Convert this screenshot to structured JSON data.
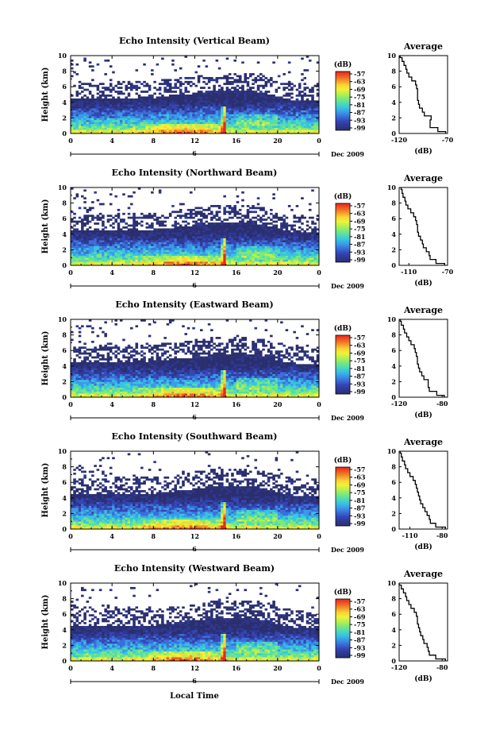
{
  "figure": {
    "xlabel": "Local Time",
    "ylabel": "Height (km)",
    "date_label": "Dec 2009",
    "day_label": "6",
    "colorbar_unit": "(dB)",
    "profile_title": "Average",
    "profile_xlabel": "(dB)"
  },
  "colorbar": {
    "ticks": [
      "-57",
      "-63",
      "-69",
      "-75",
      "-81",
      "-87",
      "-93",
      "-99"
    ],
    "colors": [
      "#e8241c",
      "#ee5a22",
      "#f4952a",
      "#fad432",
      "#eef23a",
      "#b8f04e",
      "#7ee87a",
      "#52dcb0",
      "#38c4e0",
      "#3a9ae8",
      "#3a6ed8",
      "#3446b4",
      "#2e3892",
      "#2b2f6e"
    ]
  },
  "chart_data": [
    {
      "type": "heatmap",
      "title": "Echo Intensity (Vertical Beam)",
      "xlabel": "Local Time",
      "ylabel": "Height (km)",
      "xlim": [
        0,
        24
      ],
      "ylim": [
        0,
        10
      ],
      "xticks": [
        "0",
        "4",
        "8",
        "12",
        "16",
        "20",
        "0"
      ],
      "yticks": [
        "0",
        "2",
        "4",
        "6",
        "8",
        "10"
      ],
      "color_scale_db": [
        -99,
        -57
      ],
      "profile": {
        "title": "Average",
        "xlabel": "(dB)",
        "xlim": [
          -120,
          -70
        ],
        "xticks": [
          "-120",
          "-70"
        ],
        "heights": [
          0,
          0.5,
          1,
          1.5,
          2,
          2.5,
          3,
          3.5,
          4,
          4.5,
          5,
          5.5,
          6,
          6.5,
          7,
          7.5,
          8,
          8.5,
          9,
          9.5,
          10
        ],
        "values": [
          -72,
          -80,
          -88,
          -88,
          -87,
          -94,
          -96,
          -99,
          -100,
          -101,
          -101,
          -101,
          -102,
          -103,
          -107,
          -110,
          -112,
          -113,
          -115,
          -117,
          -119
        ]
      }
    },
    {
      "type": "heatmap",
      "title": "Echo Intensity (Northward Beam)",
      "xlabel": "Local Time",
      "ylabel": "Height (km)",
      "xlim": [
        0,
        24
      ],
      "ylim": [
        0,
        10
      ],
      "xticks": [
        "0",
        "4",
        "8",
        "12",
        "16",
        "20",
        "0"
      ],
      "yticks": [
        "0",
        "2",
        "4",
        "6",
        "8",
        "10"
      ],
      "color_scale_db": [
        -99,
        -57
      ],
      "profile": {
        "title": "Average",
        "xlabel": "(dB)",
        "xlim": [
          -120,
          -70
        ],
        "xticks": [
          "-110",
          "-70"
        ],
        "heights": [
          0,
          0.5,
          1,
          1.5,
          2,
          2.5,
          3,
          3.5,
          4,
          4.5,
          5,
          5.5,
          6,
          6.5,
          7,
          7.5,
          8,
          8.5,
          9,
          9.5,
          10
        ],
        "values": [
          -73,
          -82,
          -88,
          -89,
          -92,
          -95,
          -96,
          -98,
          -100,
          -101,
          -101,
          -102,
          -103,
          -105,
          -108,
          -111,
          -113,
          -114,
          -116,
          -117,
          -118
        ]
      }
    },
    {
      "type": "heatmap",
      "title": "Echo Intensity (Eastward Beam)",
      "xlabel": "Local Time",
      "ylabel": "Height (km)",
      "xlim": [
        0,
        24
      ],
      "ylim": [
        0,
        10
      ],
      "xticks": [
        "0",
        "4",
        "8",
        "12",
        "16",
        "20",
        "0"
      ],
      "yticks": [
        "0",
        "2",
        "4",
        "6",
        "8",
        "10"
      ],
      "color_scale_db": [
        -99,
        -57
      ],
      "profile": {
        "title": "Average",
        "xlabel": "(dB)",
        "xlim": [
          -120,
          -75
        ],
        "xticks": [
          "-120",
          "-80"
        ],
        "heights": [
          0,
          0.5,
          1,
          1.5,
          2,
          2.5,
          3,
          3.5,
          4,
          4.5,
          5,
          5.5,
          6,
          6.5,
          7,
          7.5,
          8,
          8.5,
          9,
          9.5,
          10
        ],
        "values": [
          -78,
          -85,
          -92,
          -93,
          -93,
          -97,
          -99,
          -101,
          -102,
          -103,
          -103,
          -104,
          -105,
          -106,
          -109,
          -111,
          -113,
          -115,
          -116,
          -118,
          -119
        ]
      }
    },
    {
      "type": "heatmap",
      "title": "Echo Intensity (Southward Beam)",
      "xlabel": "Local Time",
      "ylabel": "Height (km)",
      "xlim": [
        0,
        24
      ],
      "ylim": [
        0,
        10
      ],
      "xticks": [
        "0",
        "4",
        "8",
        "12",
        "16",
        "20",
        "0"
      ],
      "yticks": [
        "0",
        "2",
        "4",
        "6",
        "8",
        "10"
      ],
      "color_scale_db": [
        -99,
        -57
      ],
      "profile": {
        "title": "Average",
        "xlabel": "(dB)",
        "xlim": [
          -120,
          -75
        ],
        "xticks": [
          "-110",
          "-80"
        ],
        "heights": [
          0,
          0.5,
          1,
          1.5,
          2,
          2.5,
          3,
          3.5,
          4,
          4.5,
          5,
          5.5,
          6,
          6.5,
          7,
          7.5,
          8,
          8.5,
          9,
          9.5,
          10
        ],
        "values": [
          -77,
          -86,
          -91,
          -92,
          -94,
          -96,
          -98,
          -100,
          -101,
          -102,
          -103,
          -104,
          -105,
          -107,
          -110,
          -112,
          -114,
          -115,
          -117,
          -118,
          -119
        ]
      }
    },
    {
      "type": "heatmap",
      "title": "Echo Intensity (Westward Beam)",
      "xlabel": "Local Time",
      "ylabel": "Height (km)",
      "xlim": [
        0,
        24
      ],
      "ylim": [
        0,
        10
      ],
      "xticks": [
        "0",
        "4",
        "8",
        "12",
        "16",
        "20",
        "0"
      ],
      "yticks": [
        "0",
        "2",
        "4",
        "6",
        "8",
        "10"
      ],
      "color_scale_db": [
        -99,
        -57
      ],
      "profile": {
        "title": "Average",
        "xlabel": "(dB)",
        "xlim": [
          -120,
          -75
        ],
        "xticks": [
          "-120",
          "-80"
        ],
        "heights": [
          0,
          0.5,
          1,
          1.5,
          2,
          2.5,
          3,
          3.5,
          4,
          4.5,
          5,
          5.5,
          6,
          6.5,
          7,
          7.5,
          8,
          8.5,
          9,
          9.5,
          10
        ],
        "values": [
          -77,
          -86,
          -92,
          -93,
          -94,
          -97,
          -98,
          -100,
          -101,
          -102,
          -103,
          -103,
          -104,
          -106,
          -109,
          -111,
          -113,
          -114,
          -116,
          -118,
          -120
        ]
      }
    }
  ]
}
